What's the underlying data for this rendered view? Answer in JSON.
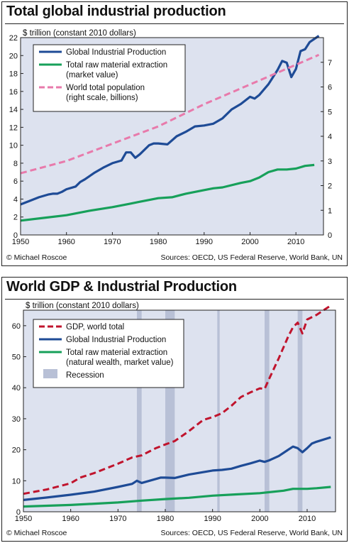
{
  "chart_data": [
    {
      "type": "line",
      "title": "Total global industrial production",
      "ylabel": "$ trillion (constant 2010 dollars)",
      "y2label": "",
      "xlim": [
        1950,
        2016
      ],
      "ylim": [
        0,
        22
      ],
      "y2lim": [
        0,
        8
      ],
      "x_ticks": [
        1950,
        1960,
        1970,
        1980,
        1990,
        2000,
        2010
      ],
      "y_ticks": [
        0,
        2,
        4,
        6,
        8,
        10,
        12,
        14,
        16,
        18,
        20,
        22
      ],
      "y2_ticks": [
        0,
        1,
        2,
        3,
        4,
        5,
        6,
        7
      ],
      "grid": false,
      "legend_position": "top-left",
      "series": [
        {
          "name": "Global Industrial Production",
          "color": "#1e4b96",
          "style": "solid",
          "axis": "left",
          "x": [
            1950,
            1952,
            1954,
            1956,
            1957,
            1958,
            1959,
            1960,
            1962,
            1963,
            1964,
            1966,
            1968,
            1970,
            1972,
            1973,
            1974,
            1975,
            1976,
            1978,
            1979,
            1980,
            1982,
            1984,
            1986,
            1988,
            1990,
            1992,
            1994,
            1996,
            1998,
            2000,
            2001,
            2002,
            2004,
            2006,
            2007,
            2008,
            2009,
            2010,
            2011,
            2012,
            2013,
            2015
          ],
          "y": [
            3.4,
            3.8,
            4.2,
            4.5,
            4.6,
            4.6,
            4.8,
            5.1,
            5.4,
            5.9,
            6.2,
            6.9,
            7.5,
            8.0,
            8.3,
            9.2,
            9.2,
            8.6,
            9.0,
            10.0,
            10.2,
            10.2,
            10.1,
            11.0,
            11.5,
            12.1,
            12.2,
            12.4,
            13.0,
            14.0,
            14.6,
            15.4,
            15.2,
            15.6,
            16.8,
            18.4,
            19.4,
            19.2,
            17.6,
            18.5,
            20.5,
            20.7,
            21.5,
            22.2
          ]
        },
        {
          "name": "Total raw material extraction (market value)",
          "color": "#17a05a",
          "style": "solid",
          "axis": "left",
          "x": [
            1950,
            1955,
            1960,
            1965,
            1970,
            1974,
            1976,
            1980,
            1983,
            1986,
            1990,
            1992,
            1994,
            1998,
            2000,
            2002,
            2004,
            2006,
            2008,
            2010,
            2012,
            2014
          ],
          "y": [
            1.6,
            1.9,
            2.2,
            2.7,
            3.1,
            3.5,
            3.7,
            4.1,
            4.2,
            4.6,
            5.0,
            5.2,
            5.3,
            5.8,
            6.0,
            6.4,
            7.0,
            7.3,
            7.3,
            7.4,
            7.7,
            7.8
          ]
        },
        {
          "name": "World total population (right scale, billions)",
          "color": "#e87aab",
          "style": "dashed",
          "axis": "right",
          "x": [
            1950,
            1960,
            1970,
            1980,
            1990,
            2000,
            2010,
            2015
          ],
          "y": [
            2.5,
            3.0,
            3.7,
            4.4,
            5.3,
            6.1,
            6.9,
            7.3
          ]
        }
      ],
      "credit_left": "© Michael Roscoe",
      "credit_right": "Sources: OECD, US Federal Reserve, World Bank, UN"
    },
    {
      "type": "line",
      "title": "World GDP & Industrial Production",
      "ylabel": "$ trillion (constant 2010 dollars)",
      "xlim": [
        1950,
        2016
      ],
      "ylim": [
        0,
        65
      ],
      "x_ticks": [
        1950,
        1960,
        1970,
        1980,
        1990,
        2000,
        2010
      ],
      "y_ticks": [
        0,
        10,
        20,
        30,
        40,
        50,
        60
      ],
      "grid": false,
      "legend_position": "top-left",
      "recessions": [
        [
          1974,
          1975
        ],
        [
          1980,
          1982
        ],
        [
          1991,
          1991.5
        ],
        [
          2001,
          2002
        ],
        [
          2008,
          2009
        ]
      ],
      "series": [
        {
          "name": "GDP, world total",
          "color": "#c0142d",
          "style": "dashed",
          "x": [
            1950,
            1955,
            1960,
            1962,
            1965,
            1970,
            1973,
            1975,
            1978,
            1980,
            1982,
            1985,
            1988,
            1990,
            1992,
            1994,
            1996,
            1998,
            2000,
            2001,
            2002,
            2004,
            2006,
            2007,
            2008,
            2009,
            2010,
            2012,
            2015
          ],
          "y": [
            5.8,
            7.2,
            9.2,
            11.0,
            12.5,
            15.5,
            17.5,
            18.2,
            20.5,
            21.7,
            22.8,
            26.0,
            29.6,
            30.5,
            31.8,
            34.2,
            37.0,
            38.5,
            39.8,
            39.6,
            43.0,
            49.5,
            56.5,
            59.5,
            61.0,
            57.5,
            62.0,
            63.5,
            66.5
          ]
        },
        {
          "name": "Global Industrial Production",
          "color": "#1e4b96",
          "style": "solid",
          "x": [
            1950,
            1955,
            1960,
            1965,
            1970,
            1973,
            1974,
            1975,
            1979,
            1980,
            1982,
            1985,
            1990,
            1992,
            1994,
            1996,
            1998,
            2000,
            2001,
            2002,
            2004,
            2006,
            2007,
            2008,
            2009,
            2010,
            2011,
            2012,
            2015
          ],
          "y": [
            3.8,
            4.6,
            5.5,
            6.5,
            8.0,
            9.0,
            10.0,
            9.3,
            11.0,
            11.0,
            10.9,
            12.0,
            13.3,
            13.5,
            13.9,
            14.8,
            15.6,
            16.5,
            16.1,
            16.6,
            18.0,
            20.0,
            21.0,
            20.5,
            19.2,
            20.5,
            22.0,
            22.6,
            24.0
          ]
        },
        {
          "name": "Total raw material extraction (natural wealth, market value)",
          "color": "#17a05a",
          "style": "solid",
          "x": [
            1950,
            1960,
            1970,
            1975,
            1980,
            1985,
            1990,
            1995,
            2000,
            2005,
            2007,
            2010,
            2012,
            2015
          ],
          "y": [
            1.7,
            2.2,
            3.0,
            3.6,
            4.1,
            4.5,
            5.2,
            5.6,
            6.0,
            6.8,
            7.4,
            7.4,
            7.6,
            8.0
          ]
        }
      ],
      "recession_label": "Recession",
      "recession_color": "#b8c0d6",
      "credit_left": "© Michael Roscoe",
      "credit_right": "Sources: OECD, US Federal Reserve, World Bank, UN"
    }
  ],
  "theme": {
    "plot_bg": "#dde2ef",
    "legend_bg": "#ffffff"
  }
}
